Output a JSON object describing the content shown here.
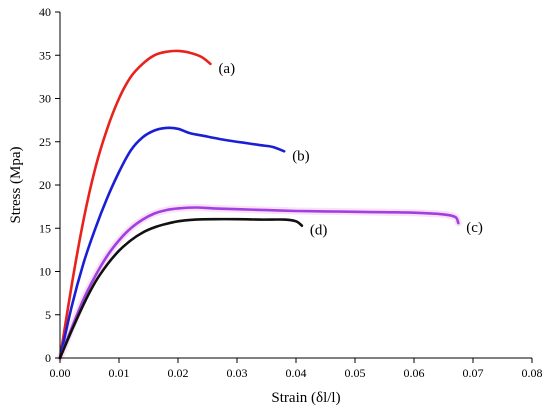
{
  "chart_data": {
    "type": "line",
    "xlabel": "Strain (δl/l)",
    "ylabel": "Stress (Mpa)",
    "xlim": [
      0,
      0.08
    ],
    "ylim": [
      0,
      40
    ],
    "x_ticks": [
      0,
      0.01,
      0.02,
      0.03,
      0.04,
      0.05,
      0.06,
      0.07,
      0.08
    ],
    "x_tick_labels": [
      "0.00",
      "0.01",
      "0.02",
      "0.03",
      "0.04",
      "0.05",
      "0.06",
      "0.07",
      "0.08"
    ],
    "y_ticks": [
      0,
      5,
      10,
      15,
      20,
      25,
      30,
      35,
      40
    ],
    "y_tick_labels": [
      "0",
      "5",
      "10",
      "15",
      "20",
      "25",
      "30",
      "35",
      "40"
    ],
    "grid": false,
    "legend": "none",
    "series": [
      {
        "label": "(a)",
        "color": "#e8231c",
        "x": [
          0,
          0.002,
          0.004,
          0.006,
          0.008,
          0.01,
          0.012,
          0.014,
          0.016,
          0.018,
          0.02,
          0.022,
          0.024,
          0.0255
        ],
        "y": [
          0,
          8.5,
          16,
          22,
          26.5,
          30,
          32.5,
          34,
          35,
          35.4,
          35.5,
          35.3,
          34.8,
          34.0
        ]
      },
      {
        "label": "(b)",
        "color": "#1a1fd6",
        "x": [
          0,
          0.002,
          0.004,
          0.006,
          0.008,
          0.01,
          0.012,
          0.014,
          0.016,
          0.018,
          0.02,
          0.022,
          0.025,
          0.028,
          0.031,
          0.034,
          0.036,
          0.038
        ],
        "y": [
          0,
          6,
          11,
          15,
          18.5,
          21.5,
          24,
          25.5,
          26.3,
          26.6,
          26.5,
          26.0,
          25.6,
          25.2,
          24.9,
          24.6,
          24.4,
          23.9
        ]
      },
      {
        "label": "(c)",
        "color": "#a040e0",
        "halo": "#f0a8e8",
        "x": [
          0,
          0.002,
          0.004,
          0.006,
          0.008,
          0.01,
          0.012,
          0.014,
          0.016,
          0.018,
          0.02,
          0.023,
          0.026,
          0.03,
          0.035,
          0.04,
          0.045,
          0.05,
          0.055,
          0.06,
          0.065,
          0.067,
          0.0675
        ],
        "y": [
          0,
          3.5,
          6.8,
          9.5,
          11.8,
          13.6,
          15.0,
          16.0,
          16.7,
          17.1,
          17.3,
          17.4,
          17.3,
          17.2,
          17.1,
          17.0,
          16.95,
          16.9,
          16.85,
          16.8,
          16.6,
          16.3,
          15.6
        ]
      },
      {
        "label": "(d)",
        "color": "#111111",
        "x": [
          0,
          0.002,
          0.004,
          0.006,
          0.008,
          0.01,
          0.012,
          0.014,
          0.016,
          0.018,
          0.02,
          0.023,
          0.026,
          0.03,
          0.034,
          0.038,
          0.04,
          0.041
        ],
        "y": [
          0,
          3.2,
          6.2,
          8.8,
          10.8,
          12.4,
          13.6,
          14.5,
          15.1,
          15.5,
          15.8,
          16.0,
          16.05,
          16.05,
          16.0,
          16.0,
          15.8,
          15.3
        ]
      }
    ]
  }
}
